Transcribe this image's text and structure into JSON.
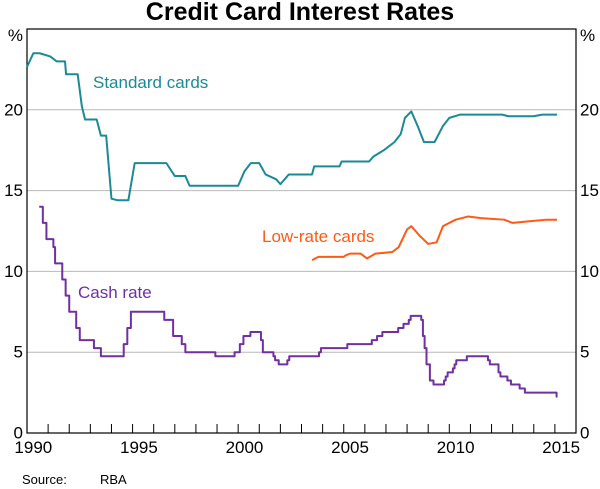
{
  "chart_data": {
    "type": "line",
    "title": "Credit Card Interest Rates",
    "ylabel_left": "%",
    "ylabel_right": "%",
    "xlim": [
      1990,
      2016
    ],
    "ylim": [
      0,
      25
    ],
    "x_ticks": [
      1990,
      1995,
      2000,
      2005,
      2010,
      2015
    ],
    "y_ticks": [
      0,
      5,
      10,
      15,
      20
    ],
    "grid": true,
    "colors": {
      "standard": "#1b8a95",
      "lowrate": "#ff5a14",
      "cash": "#7030a0"
    },
    "series": [
      {
        "name": "Standard cards",
        "key": "standard",
        "points": [
          [
            1990.0,
            22.65
          ],
          [
            1990.3,
            23.5
          ],
          [
            1990.6,
            23.5
          ],
          [
            1991.1,
            23.3
          ],
          [
            1991.4,
            23.0
          ],
          [
            1991.8,
            23.0
          ],
          [
            1991.85,
            22.2
          ],
          [
            1992.4,
            22.2
          ],
          [
            1992.6,
            20.2
          ],
          [
            1992.75,
            19.4
          ],
          [
            1993.3,
            19.4
          ],
          [
            1993.5,
            18.4
          ],
          [
            1993.75,
            18.4
          ],
          [
            1994.0,
            14.5
          ],
          [
            1994.3,
            14.4
          ],
          [
            1994.8,
            14.4
          ],
          [
            1995.1,
            16.7
          ],
          [
            1996.6,
            16.7
          ],
          [
            1997.0,
            15.9
          ],
          [
            1997.5,
            15.9
          ],
          [
            1997.7,
            15.3
          ],
          [
            2000.0,
            15.3
          ],
          [
            2000.3,
            16.2
          ],
          [
            2000.6,
            16.7
          ],
          [
            2001.0,
            16.7
          ],
          [
            2001.3,
            16.0
          ],
          [
            2001.8,
            15.7
          ],
          [
            2002.0,
            15.4
          ],
          [
            2002.4,
            16.0
          ],
          [
            2003.5,
            16.0
          ],
          [
            2003.6,
            16.5
          ],
          [
            2004.8,
            16.5
          ],
          [
            2004.9,
            16.8
          ],
          [
            2006.2,
            16.8
          ],
          [
            2006.4,
            17.1
          ],
          [
            2006.9,
            17.5
          ],
          [
            2007.4,
            18.0
          ],
          [
            2007.7,
            18.5
          ],
          [
            2007.9,
            19.5
          ],
          [
            2008.2,
            19.9
          ],
          [
            2008.5,
            19.0
          ],
          [
            2008.8,
            18.0
          ],
          [
            2009.3,
            18.0
          ],
          [
            2009.7,
            19.0
          ],
          [
            2010.0,
            19.5
          ],
          [
            2010.5,
            19.7
          ],
          [
            2012.5,
            19.7
          ],
          [
            2012.8,
            19.6
          ],
          [
            2014.0,
            19.6
          ],
          [
            2014.4,
            19.7
          ],
          [
            2015.1,
            19.7
          ]
        ]
      },
      {
        "name": "Low-rate cards",
        "key": "lowrate",
        "points": [
          [
            2003.5,
            10.7
          ],
          [
            2003.8,
            10.9
          ],
          [
            2005.0,
            10.9
          ],
          [
            2005.1,
            11.0
          ],
          [
            2005.3,
            11.1
          ],
          [
            2005.8,
            11.1
          ],
          [
            2006.0,
            10.9
          ],
          [
            2006.1,
            10.8
          ],
          [
            2006.5,
            11.1
          ],
          [
            2007.3,
            11.2
          ],
          [
            2007.6,
            11.5
          ],
          [
            2008.0,
            12.6
          ],
          [
            2008.2,
            12.8
          ],
          [
            2008.6,
            12.2
          ],
          [
            2009.0,
            11.7
          ],
          [
            2009.4,
            11.8
          ],
          [
            2009.7,
            12.8
          ],
          [
            2010.3,
            13.2
          ],
          [
            2010.9,
            13.4
          ],
          [
            2011.5,
            13.3
          ],
          [
            2012.6,
            13.2
          ],
          [
            2013.0,
            13.0
          ],
          [
            2013.8,
            13.1
          ],
          [
            2014.6,
            13.2
          ],
          [
            2015.1,
            13.2
          ]
        ]
      },
      {
        "name": "Cash rate",
        "key": "cash",
        "step": true,
        "points": [
          [
            1990.58,
            14
          ],
          [
            1990.75,
            13
          ],
          [
            1990.92,
            12
          ],
          [
            1991.25,
            11.5
          ],
          [
            1991.33,
            10.5
          ],
          [
            1991.67,
            9.5
          ],
          [
            1991.83,
            8.5
          ],
          [
            1992.0,
            7.5
          ],
          [
            1992.33,
            6.5
          ],
          [
            1992.5,
            5.75
          ],
          [
            1993.17,
            5.25
          ],
          [
            1993.5,
            4.75
          ],
          [
            1994.58,
            5.5
          ],
          [
            1994.75,
            6.5
          ],
          [
            1994.92,
            7.5
          ],
          [
            1996.5,
            7.0
          ],
          [
            1996.92,
            6.0
          ],
          [
            1997.33,
            5.5
          ],
          [
            1997.5,
            5.0
          ],
          [
            1998.92,
            4.75
          ],
          [
            1999.83,
            5.0
          ],
          [
            2000.08,
            5.5
          ],
          [
            2000.25,
            6.0
          ],
          [
            2000.58,
            6.25
          ],
          [
            2001.08,
            5.75
          ],
          [
            2001.17,
            5.0
          ],
          [
            2001.67,
            4.75
          ],
          [
            2001.75,
            4.5
          ],
          [
            2001.92,
            4.25
          ],
          [
            2002.33,
            4.5
          ],
          [
            2002.42,
            4.75
          ],
          [
            2003.83,
            5.0
          ],
          [
            2003.92,
            5.25
          ],
          [
            2005.17,
            5.5
          ],
          [
            2006.33,
            5.75
          ],
          [
            2006.58,
            6.0
          ],
          [
            2006.83,
            6.25
          ],
          [
            2007.58,
            6.5
          ],
          [
            2007.83,
            6.75
          ],
          [
            2008.08,
            7.0
          ],
          [
            2008.17,
            7.25
          ],
          [
            2008.67,
            7.0
          ],
          [
            2008.75,
            6.0
          ],
          [
            2008.83,
            5.25
          ],
          [
            2008.92,
            4.25
          ],
          [
            2009.08,
            3.25
          ],
          [
            2009.25,
            3.0
          ],
          [
            2009.75,
            3.25
          ],
          [
            2009.83,
            3.5
          ],
          [
            2009.92,
            3.75
          ],
          [
            2010.17,
            4.0
          ],
          [
            2010.25,
            4.25
          ],
          [
            2010.33,
            4.5
          ],
          [
            2010.83,
            4.75
          ],
          [
            2011.83,
            4.5
          ],
          [
            2011.92,
            4.25
          ],
          [
            2012.33,
            3.75
          ],
          [
            2012.42,
            3.5
          ],
          [
            2012.75,
            3.25
          ],
          [
            2012.92,
            3.0
          ],
          [
            2013.33,
            2.75
          ],
          [
            2013.58,
            2.5
          ],
          [
            2015.08,
            2.25
          ],
          [
            2015.12,
            2.25
          ]
        ]
      }
    ],
    "source_label": "Source:",
    "source": "RBA"
  }
}
